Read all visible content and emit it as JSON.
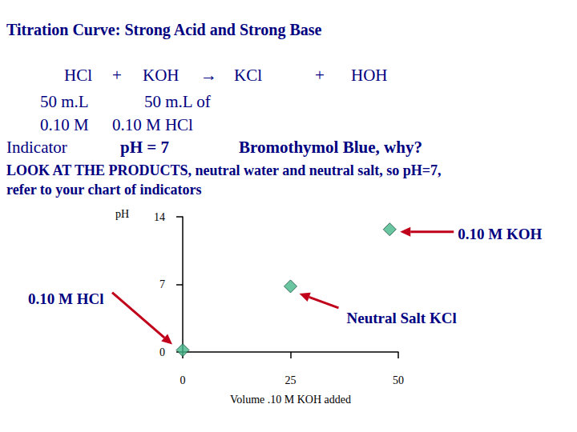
{
  "slide": {
    "title": "Titration Curve: Strong Acid and Strong Base",
    "rows": [
      [
        "HCl",
        "+",
        "KOH",
        "→",
        "KCl",
        "+",
        "HOH"
      ],
      [
        "50 m.L",
        "50 m.L of"
      ],
      [
        "0.10 M",
        "0.10 M HCl"
      ],
      [
        "Indicator",
        "pH = 7",
        "Bromothymol Blue, why?"
      ]
    ],
    "note": [
      "LOOK AT THE PRODUCTS, neutral water and neutral salt, so pH=7,",
      "refer to your chart of indicators"
    ]
  },
  "chart_data": {
    "type": "scatter",
    "x_label": "Volume .10 M KOH added",
    "y_label": "pH",
    "x": [
      0,
      25,
      48
    ],
    "values": [
      0.2,
      6.8,
      12.7
    ],
    "point_labels": [
      "0.10 M HCl",
      "Neutral Salt KCl",
      "0.10 M KOH"
    ],
    "color": "#45b88a",
    "marker": "diamond",
    "xlim": [
      0,
      50
    ],
    "xticks": [
      0,
      25,
      50
    ],
    "ylim": [
      0,
      14
    ],
    "yticks": [
      0,
      7,
      14
    ],
    "grid": false
  }
}
